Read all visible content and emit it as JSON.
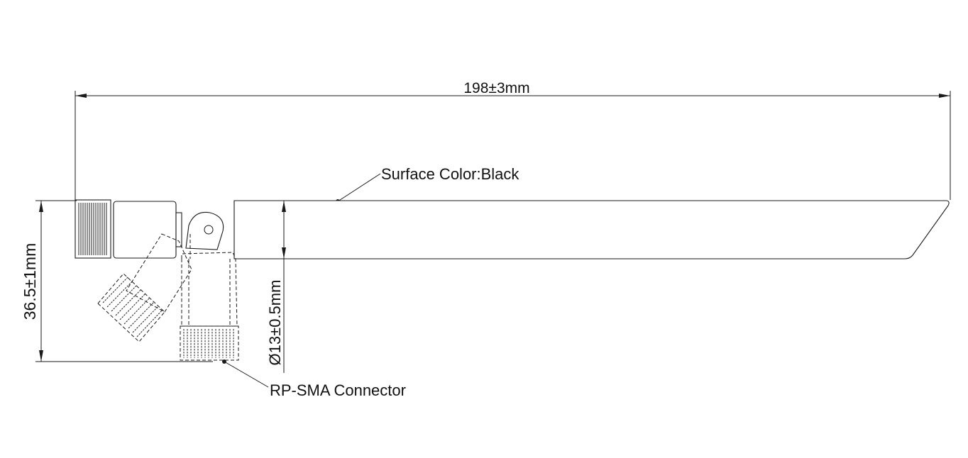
{
  "drawing": {
    "length_label": "198±3mm",
    "height_label": "36.5±1mm",
    "diameter_label": "Ø13±0.5mm",
    "surface_label": "Surface Color:Black",
    "connector_label": "RP-SMA Connector"
  },
  "colors": {
    "line": "#1a1a1a",
    "background": "#ffffff"
  }
}
